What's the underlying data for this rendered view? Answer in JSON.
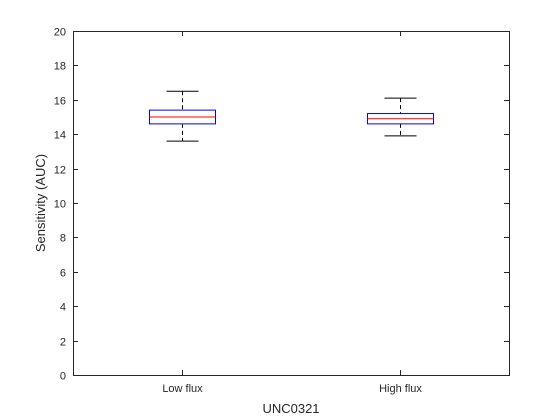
{
  "chart_data": {
    "type": "box",
    "title": "",
    "xlabel": "UNC0321",
    "ylabel": "Sensitivity (AUC)",
    "ylim": [
      0,
      20
    ],
    "yticks": [
      0,
      2,
      4,
      6,
      8,
      10,
      12,
      14,
      16,
      18,
      20
    ],
    "grid": false,
    "categories": [
      "Low flux",
      "High flux"
    ],
    "boxes": [
      {
        "category": "Low flux",
        "whisker_low": 13.6,
        "q1": 14.6,
        "median": 15.0,
        "q3": 15.4,
        "whisker_high": 16.5
      },
      {
        "category": "High flux",
        "whisker_low": 13.9,
        "q1": 14.6,
        "median": 14.9,
        "q3": 15.2,
        "whisker_high": 16.1
      }
    ],
    "colors": {
      "box": "#0000ff",
      "median": "#ff0000",
      "whisker": "#000000",
      "axis": "#262626"
    }
  }
}
